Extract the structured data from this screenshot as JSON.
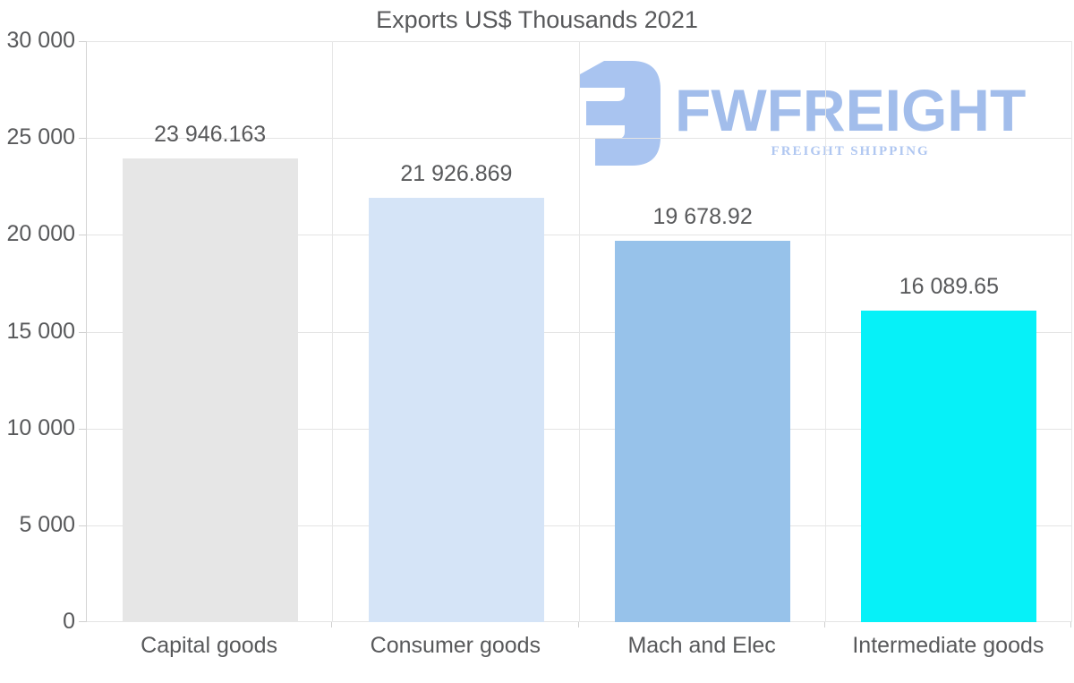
{
  "chart_data": {
    "type": "bar",
    "title": "Exports US$ Thousands 2021",
    "categories": [
      "Capital goods",
      "Consumer goods",
      "Mach and Elec",
      "Intermediate goods"
    ],
    "values": [
      23946.163,
      21926.869,
      19678.92,
      16089.65
    ],
    "value_labels": [
      "23 946.163",
      "21 926.869",
      "19 678.92",
      "16 089.65"
    ],
    "bar_colors": [
      "#e6e6e6",
      "#d5e4f7",
      "#97c2ea",
      "#06f1f8"
    ],
    "xlabel": "",
    "ylabel": "",
    "ylim": [
      0,
      30000
    ],
    "yticks": [
      0,
      5000,
      10000,
      15000,
      20000,
      25000,
      30000
    ],
    "ytick_labels": [
      "0",
      "5 000",
      "10 000",
      "15 000",
      "20 000",
      "25 000",
      "30 000"
    ],
    "grid": "on",
    "legend": "none"
  },
  "logo": {
    "wordmark": "FWFREIGHT",
    "tagline": "FREIGHT SHIPPING",
    "icon": "freight-f-mark",
    "icon_color": "#a9c4f0",
    "wordmark_color": "#a2bdeb",
    "tagline_color": "#b0c7f1"
  },
  "colors": {
    "text": "#58595b",
    "gridline": "#e4e4e4",
    "axis_line": "#d4d4d4",
    "background": "#ffffff"
  }
}
